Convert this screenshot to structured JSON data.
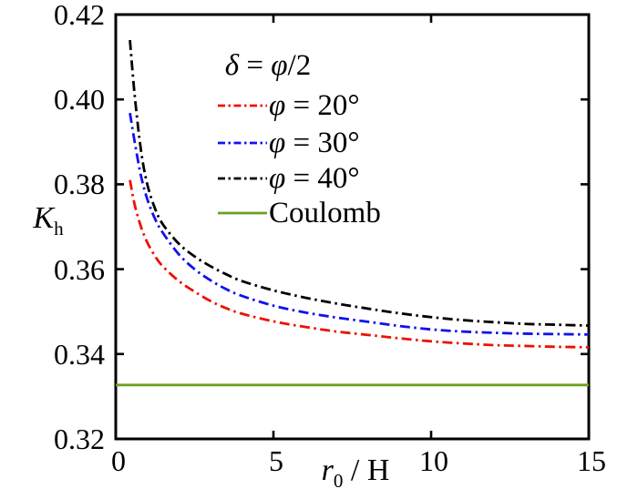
{
  "figure": {
    "background": "#ffffff",
    "axis_color": "#000000"
  },
  "chart_data": {
    "type": "line",
    "title": "",
    "xlabel": "r0 / H",
    "ylabel": "Kh",
    "xlabel_parts": {
      "base": "r",
      "sub": "0",
      "rest": " / H"
    },
    "ylabel_parts": {
      "base": "K",
      "sub": "h"
    },
    "grid": false,
    "axes": {
      "x": {
        "range": [
          0,
          15
        ],
        "ticks": [
          0,
          5,
          10,
          15
        ],
        "tick_labels": [
          "0",
          "5",
          "10",
          "15"
        ]
      },
      "y": {
        "range": [
          0.32,
          0.42
        ],
        "ticks": [
          0.32,
          0.34,
          0.36,
          0.38,
          0.4,
          0.42
        ],
        "tick_labels": [
          "0.32",
          "0.34",
          "0.36",
          "0.38",
          "0.40",
          "0.42"
        ]
      }
    },
    "legend": {
      "position": "upper-center-inside",
      "title": "δ = φ/2",
      "title_parts": {
        "sym1": "δ",
        "mid": " = ",
        "sym2": "φ",
        "rest": "/2"
      },
      "entries": [
        {
          "label": "φ = 20°",
          "sym": "φ",
          "rest": " = 20°",
          "color": "#ee1100",
          "style": "dash-dot"
        },
        {
          "label": "φ = 30°",
          "sym": "φ",
          "rest": " = 30°",
          "color": "#1111ee",
          "style": "dash-dot"
        },
        {
          "label": "φ = 40°",
          "sym": "φ",
          "rest": " = 40°",
          "color": "#000000",
          "style": "dash-dot"
        },
        {
          "label": "Coulomb",
          "sym": "",
          "rest": "Coulomb",
          "color": "#6aa121",
          "style": "solid"
        }
      ]
    },
    "series": [
      {
        "name": "phi-20",
        "legend": "φ = 20°",
        "color": "#ee1100",
        "style": "dash-dot",
        "x": [
          0.45,
          0.6,
          0.8,
          1,
          1.25,
          1.5,
          2,
          2.5,
          3,
          3.5,
          4,
          5,
          6,
          7,
          8,
          9,
          10,
          11,
          12,
          13,
          14,
          15
        ],
        "y": [
          0.381,
          0.3752,
          0.37,
          0.3663,
          0.363,
          0.3606,
          0.3572,
          0.3547,
          0.3525,
          0.3508,
          0.3495,
          0.3477,
          0.3464,
          0.3453,
          0.3445,
          0.3437,
          0.343,
          0.3425,
          0.3421,
          0.3419,
          0.3417,
          0.3416
        ]
      },
      {
        "name": "phi-30",
        "legend": "φ = 30°",
        "color": "#1111ee",
        "style": "dash-dot",
        "x": [
          0.45,
          0.6,
          0.8,
          1,
          1.25,
          1.5,
          2,
          2.5,
          3,
          3.5,
          4,
          5,
          6,
          7,
          8,
          9,
          10,
          11,
          12,
          13,
          14,
          15
        ],
        "y": [
          0.3968,
          0.39,
          0.382,
          0.3765,
          0.3718,
          0.3685,
          0.3635,
          0.36,
          0.3574,
          0.3553,
          0.3537,
          0.3514,
          0.3498,
          0.3486,
          0.3476,
          0.3466,
          0.3458,
          0.3453,
          0.345,
          0.3448,
          0.3447,
          0.3446
        ]
      },
      {
        "name": "phi-40",
        "legend": "φ = 40°",
        "color": "#000000",
        "style": "dash-dot",
        "x": [
          0.45,
          0.6,
          0.8,
          1,
          1.25,
          1.5,
          2,
          2.5,
          3,
          3.5,
          4,
          5,
          6,
          7,
          8,
          9,
          10,
          11,
          12,
          13,
          14,
          15
        ],
        "y": [
          0.414,
          0.401,
          0.388,
          0.38,
          0.3742,
          0.3705,
          0.366,
          0.363,
          0.3607,
          0.3588,
          0.3572,
          0.355,
          0.3533,
          0.3519,
          0.3507,
          0.3496,
          0.3487,
          0.348,
          0.3475,
          0.3471,
          0.3469,
          0.3467
        ]
      },
      {
        "name": "coulomb",
        "legend": "Coulomb",
        "color": "#6aa121",
        "style": "solid",
        "x": [
          0,
          15
        ],
        "y": [
          0.3327,
          0.3327
        ]
      }
    ]
  }
}
